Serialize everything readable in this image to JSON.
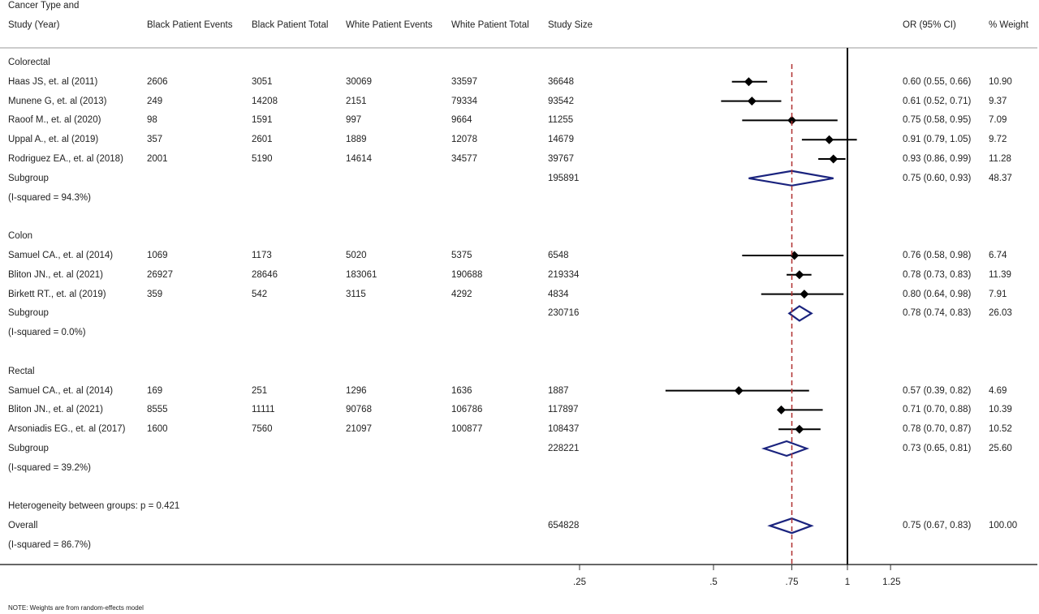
{
  "header": {
    "col_study_line1": "Cancer Type and",
    "col_study_line2": "Study (Year)",
    "col_black_events": "Black Patient Events",
    "col_black_total": "Black Patient Total",
    "col_white_events": "White Patient Events",
    "col_white_total": "White Patient Total",
    "col_study_size": "Study Size",
    "col_or": "OR (95% CI)",
    "col_weight": "% Weight"
  },
  "note": "NOTE: Weights are from random-effects model",
  "colors": {
    "marker": "#000000",
    "diamond": "#1a237e",
    "reference_line": "#b03030",
    "axis": "#000000"
  },
  "chart_data": {
    "type": "forest",
    "x_tick_labels": [
      ".25",
      ".5",
      ".75",
      "1",
      "1.25"
    ],
    "x_ticks": [
      0.25,
      0.5,
      0.75,
      1,
      1.25
    ],
    "x_scale": "log",
    "xlim": [
      0.25,
      1.25
    ],
    "null_line": 1,
    "overall_line": 0.75,
    "groups": [
      {
        "name": "Colorectal",
        "studies": [
          {
            "study": "Haas JS, et. al (2011)",
            "black_events": "2606",
            "black_total": "3051",
            "white_events": "30069",
            "white_total": "33597",
            "size": "36648",
            "or_text": "0.60 (0.55, 0.66)",
            "weight": "10.90",
            "or": 0.6,
            "lo": 0.55,
            "hi": 0.66
          },
          {
            "study": "Munene G, et. al (2013)",
            "black_events": "249",
            "black_total": "14208",
            "white_events": "2151",
            "white_total": "79334",
            "size": "93542",
            "or_text": "0.61 (0.52, 0.71)",
            "weight": "9.37",
            "or": 0.61,
            "lo": 0.52,
            "hi": 0.71
          },
          {
            "study": "Raoof M., et. al (2020)",
            "black_events": "98",
            "black_total": "1591",
            "white_events": "997",
            "white_total": "9664",
            "size": "11255",
            "or_text": "0.75 (0.58, 0.95)",
            "weight": "7.09",
            "or": 0.75,
            "lo": 0.58,
            "hi": 0.95
          },
          {
            "study": "Uppal A., et. al (2019)",
            "black_events": "357",
            "black_total": "2601",
            "white_events": "1889",
            "white_total": "12078",
            "size": "14679",
            "or_text": "0.91 (0.79, 1.05)",
            "weight": "9.72",
            "or": 0.91,
            "lo": 0.79,
            "hi": 1.05
          },
          {
            "study": "Rodriguez EA., et. al (2018)",
            "black_events": "2001",
            "black_total": "5190",
            "white_events": "14614",
            "white_total": "34577",
            "size": "39767",
            "or_text": "0.93 (0.86, 0.99)",
            "weight": "11.28",
            "or": 0.93,
            "lo": 0.86,
            "hi": 0.99
          }
        ],
        "subgroup": {
          "label": "Subgroup",
          "size": "195891",
          "or_text": "0.75 (0.60, 0.93)",
          "weight": "48.37",
          "or": 0.75,
          "lo": 0.6,
          "hi": 0.93
        },
        "isq": "(I-squared = 94.3%)"
      },
      {
        "name": "Colon",
        "studies": [
          {
            "study": "Samuel CA., et. al (2014)",
            "black_events": "1069",
            "black_total": "1173",
            "white_events": "5020",
            "white_total": "5375",
            "size": "6548",
            "or_text": "0.76 (0.58, 0.98)",
            "weight": "6.74",
            "or": 0.76,
            "lo": 0.58,
            "hi": 0.98
          },
          {
            "study": "Bliton JN., et. al (2021)",
            "black_events": "26927",
            "black_total": "28646",
            "white_events": "183061",
            "white_total": "190688",
            "size": "219334",
            "or_text": "0.78 (0.73, 0.83)",
            "weight": "11.39",
            "or": 0.78,
            "lo": 0.73,
            "hi": 0.83
          },
          {
            "study": "Birkett RT., et. al (2019)",
            "black_events": "359",
            "black_total": "542",
            "white_events": "3115",
            "white_total": "4292",
            "size": "4834",
            "or_text": "0.80 (0.64, 0.98)",
            "weight": "7.91",
            "or": 0.8,
            "lo": 0.64,
            "hi": 0.98
          }
        ],
        "subgroup": {
          "label": "Subgroup",
          "size": "230716",
          "or_text": "0.78 (0.74, 0.83)",
          "weight": "26.03",
          "or": 0.78,
          "lo": 0.74,
          "hi": 0.83
        },
        "isq": "(I-squared = 0.0%)"
      },
      {
        "name": "Rectal",
        "studies": [
          {
            "study": "Samuel CA., et. al (2014)",
            "black_events": "169",
            "black_total": "251",
            "white_events": "1296",
            "white_total": "1636",
            "size": "1887",
            "or_text": "0.57 (0.39, 0.82)",
            "weight": "4.69",
            "or": 0.57,
            "lo": 0.39,
            "hi": 0.82
          },
          {
            "study": "Bliton JN., et. al (2021)",
            "black_events": "8555",
            "black_total": "11111",
            "white_events": "90768",
            "white_total": "106786",
            "size": "117897",
            "or_text": "0.71 (0.70, 0.88)",
            "weight": "10.39",
            "or": 0.71,
            "lo": 0.7,
            "hi": 0.88
          },
          {
            "study": "Arsoniadis EG., et. al (2017)",
            "black_events": "1600",
            "black_total": "7560",
            "white_events": "21097",
            "white_total": "100877",
            "size": "108437",
            "or_text": "0.78 (0.70, 0.87)",
            "weight": "10.52",
            "or": 0.78,
            "lo": 0.7,
            "hi": 0.87
          }
        ],
        "subgroup": {
          "label": "Subgroup",
          "size": "228221",
          "or_text": "0.73 (0.65, 0.81)",
          "weight": "25.60",
          "or": 0.73,
          "lo": 0.65,
          "hi": 0.81
        },
        "isq": "(I-squared = 39.2%)"
      }
    ],
    "heterogeneity": "Heterogeneity between groups: p = 0.421",
    "overall": {
      "label": "Overall",
      "size": "654828",
      "or_text": "0.75 (0.67, 0.83)",
      "weight": "100.00",
      "or": 0.75,
      "lo": 0.67,
      "hi": 0.83,
      "isq": "(I-squared = 86.7%)"
    }
  }
}
